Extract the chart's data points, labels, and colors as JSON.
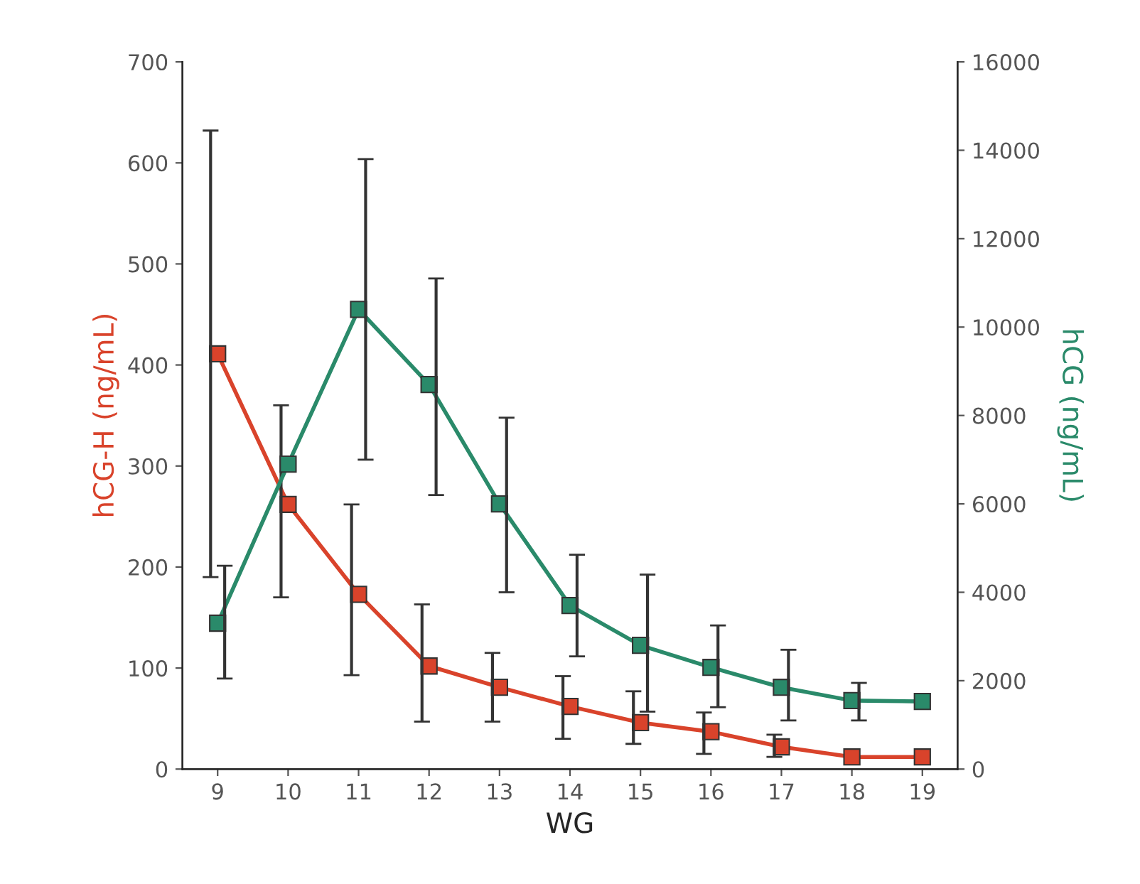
{
  "chart_data": {
    "type": "line",
    "xlabel": "WG",
    "ylabel": "hCG-H (ng/mL)",
    "y2label": "hCG (ng/mL)",
    "categories": [
      "9",
      "10",
      "11",
      "12",
      "13",
      "14",
      "15",
      "16",
      "17",
      "18",
      "19"
    ],
    "series": [
      {
        "color": "#d9432b",
        "values": [
          411,
          262,
          173,
          102,
          81,
          62,
          46,
          37,
          22,
          12,
          12
        ],
        "errors": [
          [
            190,
            632
          ],
          [
            170,
            360
          ],
          [
            93,
            262
          ],
          [
            47,
            163
          ],
          [
            47,
            115
          ],
          [
            30,
            92
          ],
          [
            25,
            77
          ],
          [
            15,
            56
          ],
          [
            12,
            34
          ],
          null,
          null
        ]
      },
      {
        "color": "#2a8a6a",
        "axis": "y2",
        "values": [
          3300,
          6900,
          10400,
          8700,
          6000,
          3700,
          2800,
          2300,
          1850,
          1550,
          1530
        ],
        "errors": [
          [
            2050,
            4600
          ],
          null,
          [
            7000,
            13800
          ],
          [
            6200,
            11100
          ],
          [
            4000,
            7950
          ],
          [
            2550,
            4850
          ],
          [
            1300,
            4400
          ],
          [
            1400,
            3250
          ],
          [
            1100,
            2700
          ],
          [
            1100,
            1950
          ],
          null
        ]
      }
    ],
    "ylim": [
      0,
      700
    ],
    "yticks": [
      0,
      100,
      200,
      300,
      400,
      500,
      600,
      700
    ],
    "y2lim": [
      0,
      16000
    ],
    "y2ticks": [
      0,
      2000,
      4000,
      6000,
      8000,
      10000,
      12000,
      14000,
      16000
    ],
    "marker": "square",
    "line_style": "solid"
  }
}
